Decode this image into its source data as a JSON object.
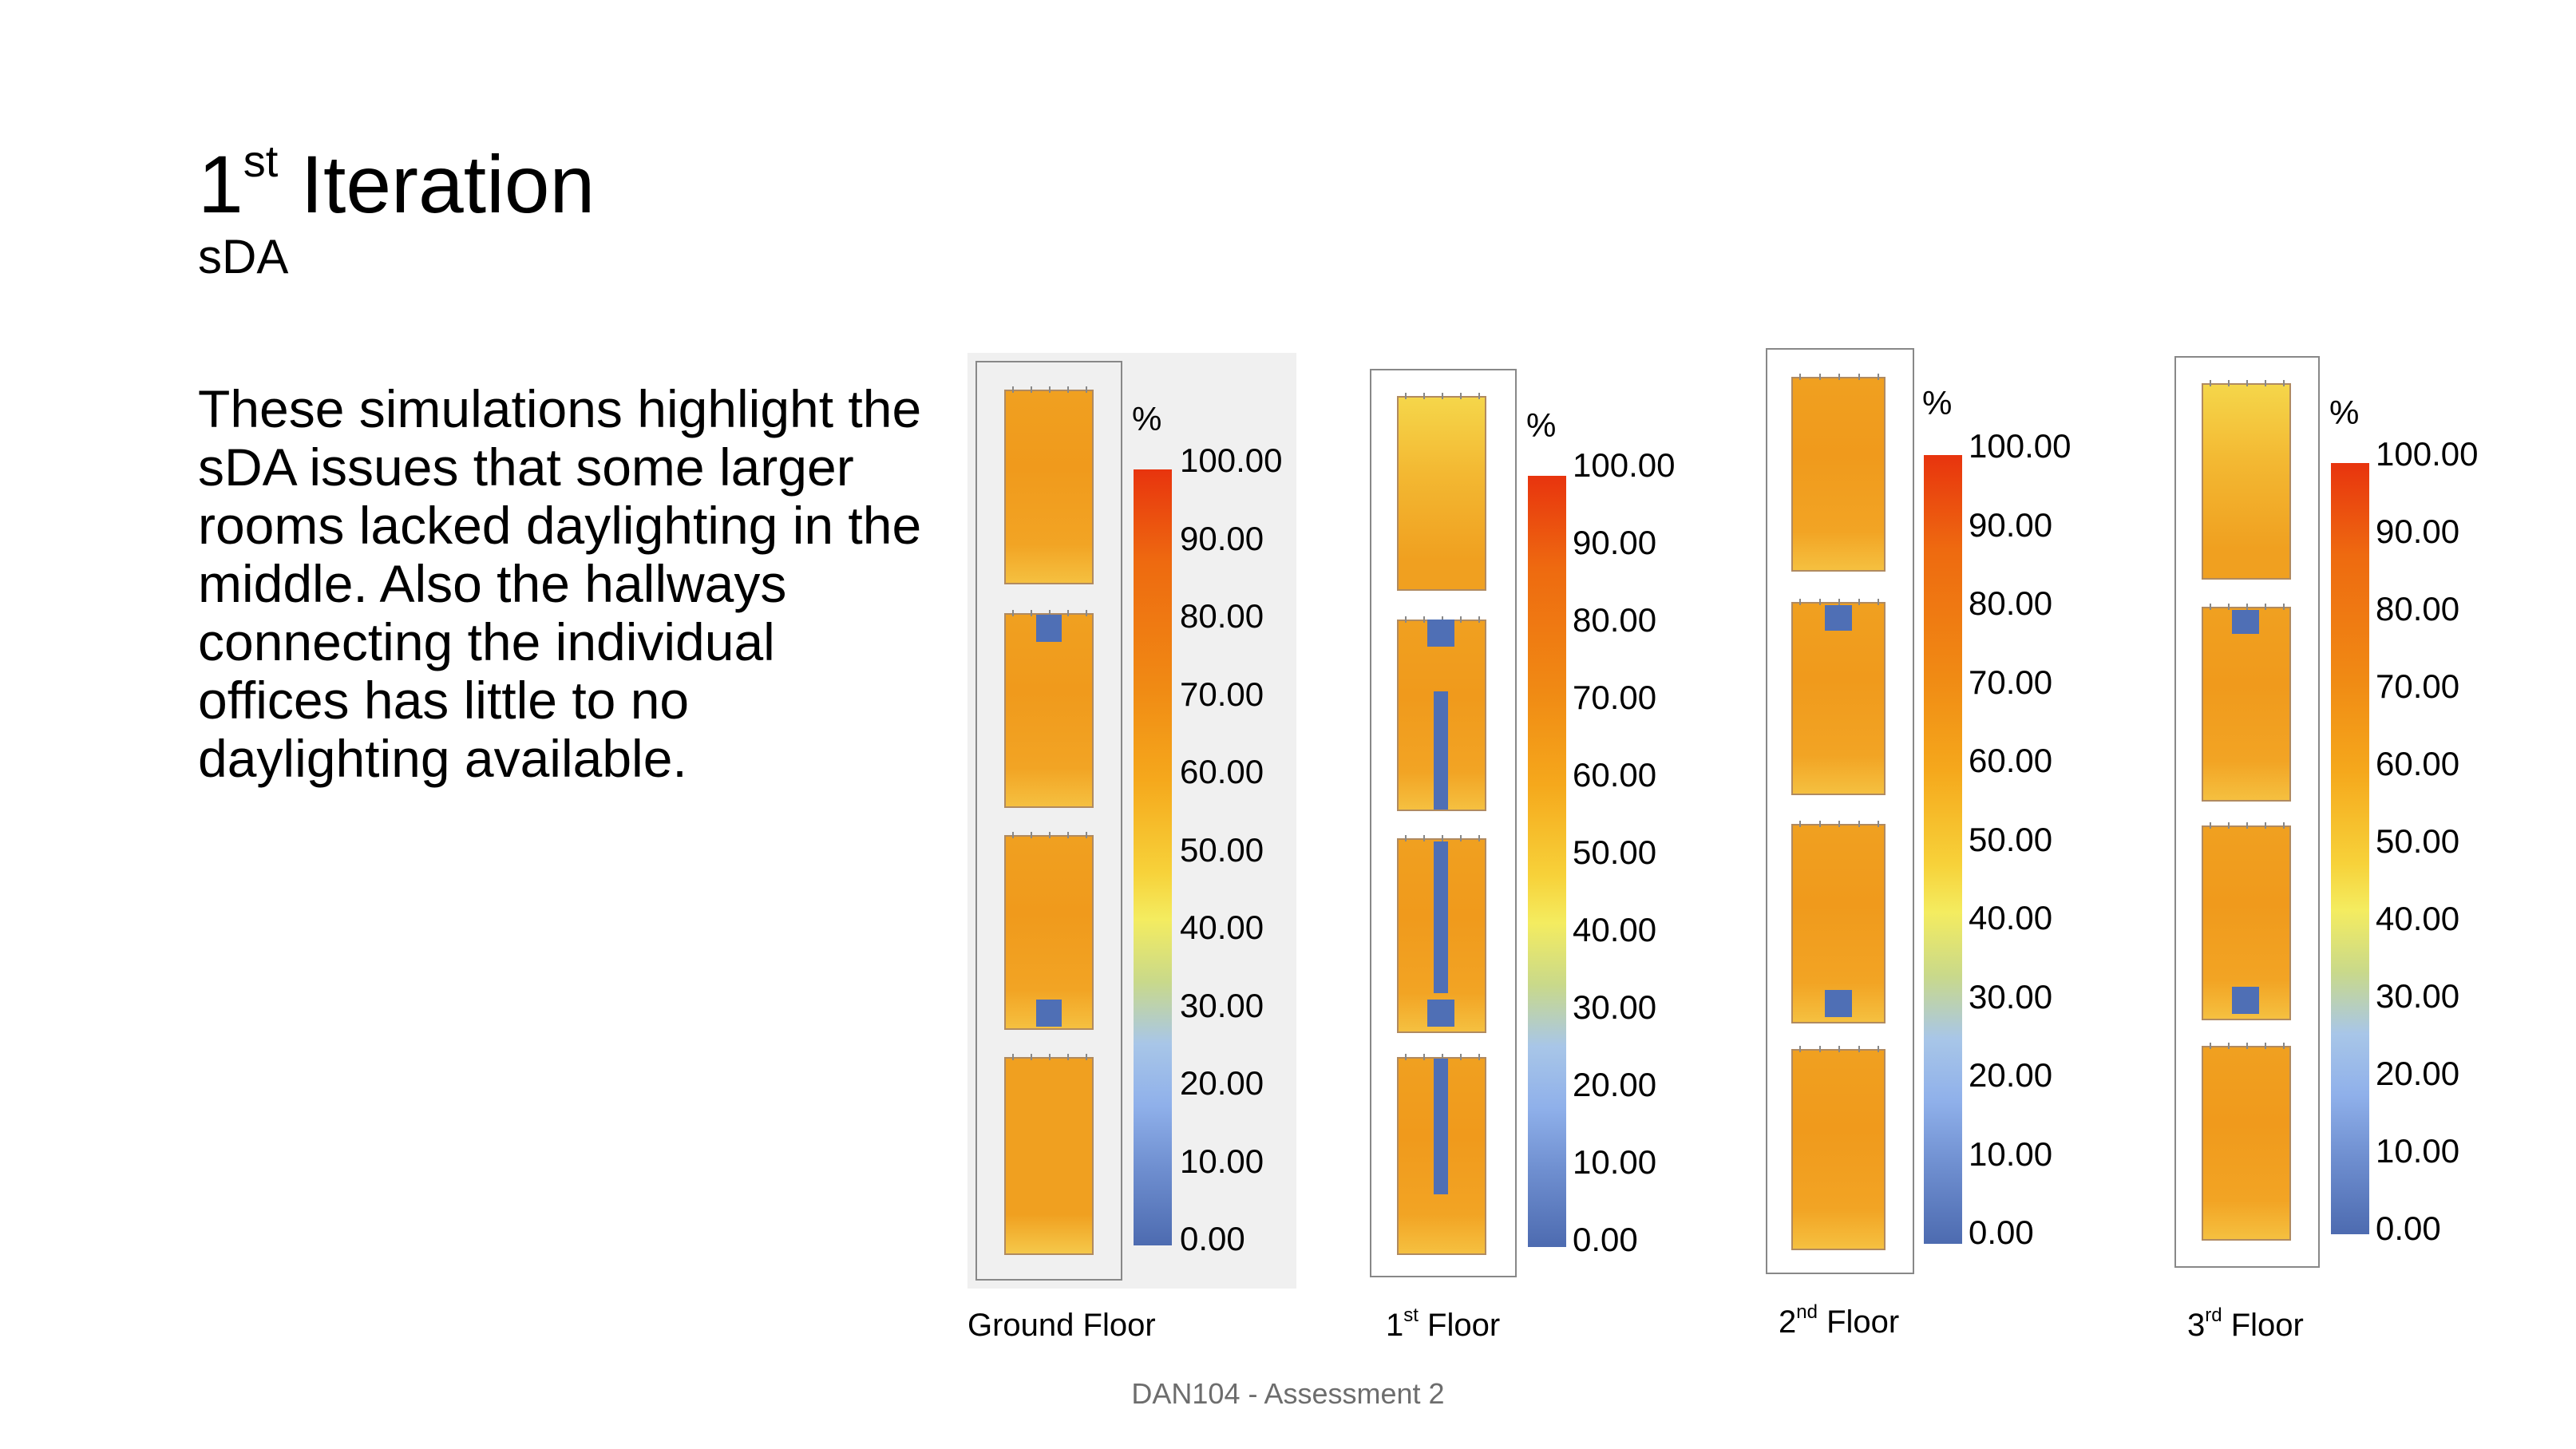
{
  "slide": {
    "title_main": "1",
    "title_sup": "st",
    "title_rest": " Iteration",
    "subtitle": "sDA",
    "body": "These simulations highlight the sDA issues that some larger rooms lacked daylighting in the middle. Also the hallways connecting the individual offices has little to no daylighting available.",
    "footer": "DAN104 - Assessment 2"
  },
  "legend": {
    "unit": "%",
    "ticks": [
      "100.00",
      "90.00",
      "80.00",
      "70.00",
      "60.00",
      "50.00",
      "40.00",
      "30.00",
      "20.00",
      "10.00",
      "0.00"
    ]
  },
  "panels": [
    {
      "label_main": "Ground Floor",
      "label_sup": ""
    },
    {
      "label_main": "1",
      "label_sup": "st",
      "label_rest": " Floor"
    },
    {
      "label_main": "2",
      "label_sup": "nd",
      "label_rest": " Floor"
    },
    {
      "label_main": "3",
      "label_sup": "rd",
      "label_rest": " Floor"
    }
  ]
}
